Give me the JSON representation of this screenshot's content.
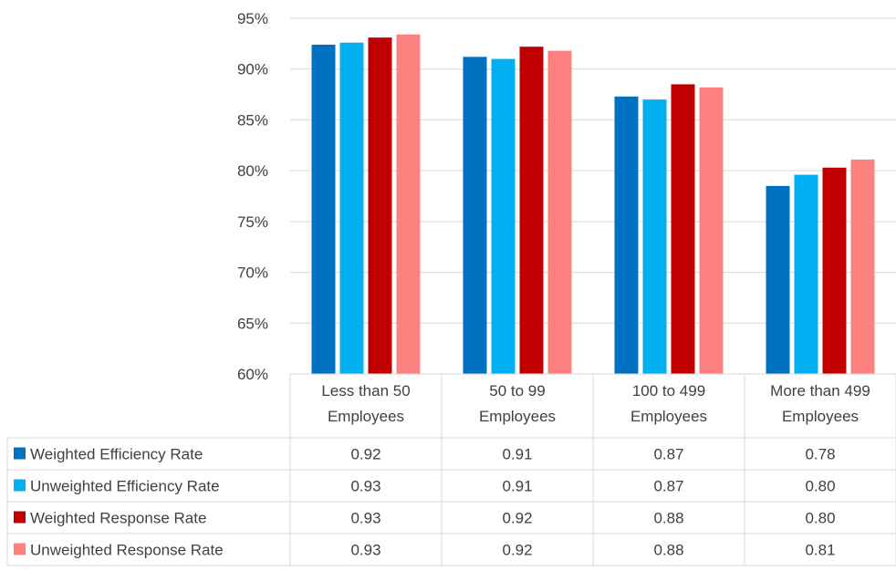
{
  "chart_data": {
    "type": "bar",
    "categories": [
      [
        "Less than 50",
        "Employees"
      ],
      [
        "50 to 99",
        "Employees"
      ],
      [
        "100 to 499",
        "Employees"
      ],
      [
        "More than 499",
        "Employees"
      ]
    ],
    "ylim": [
      0.6,
      0.95
    ],
    "y_ticks": [
      0.6,
      0.65,
      0.7,
      0.75,
      0.8,
      0.85,
      0.9,
      0.95
    ],
    "y_tick_labels": [
      "60%",
      "65%",
      "70%",
      "75%",
      "80%",
      "85%",
      "90%",
      "95%"
    ],
    "grid": true,
    "legend": "data-table-left",
    "series": [
      {
        "name": "Weighted Efficiency Rate",
        "color": "#0070C0",
        "values": [
          0.924,
          0.912,
          0.873,
          0.785
        ],
        "table_values": [
          "0.92",
          "0.91",
          "0.87",
          "0.78"
        ]
      },
      {
        "name": "Unweighted Efficiency Rate",
        "color": "#00B0F0",
        "values": [
          0.926,
          0.91,
          0.87,
          0.796
        ],
        "table_values": [
          "0.93",
          "0.91",
          "0.87",
          "0.80"
        ]
      },
      {
        "name": "Weighted Response  Rate",
        "color": "#C00000",
        "values": [
          0.931,
          0.922,
          0.885,
          0.803
        ],
        "table_values": [
          "0.93",
          "0.92",
          "0.88",
          "0.80"
        ]
      },
      {
        "name": "Unweighted Response  Rate",
        "color": "#FF8080",
        "values": [
          0.934,
          0.918,
          0.882,
          0.811
        ],
        "table_values": [
          "0.93",
          "0.92",
          "0.88",
          "0.81"
        ]
      }
    ]
  }
}
